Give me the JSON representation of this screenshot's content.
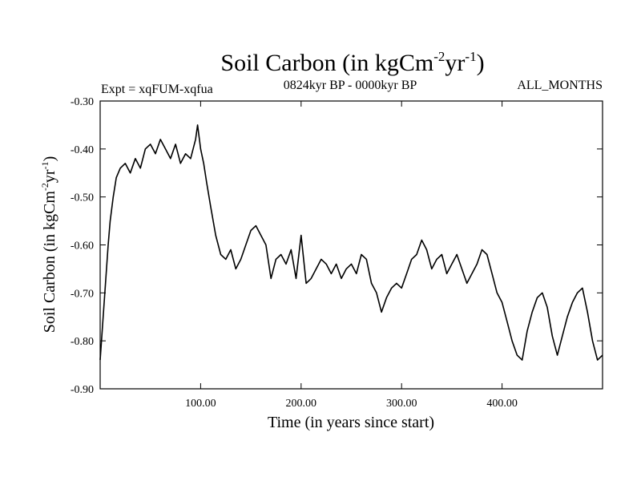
{
  "chart_data": {
    "type": "line",
    "title": {
      "main": "Soil Carbon (in kgCm",
      "sup1": "-2",
      "mid": "yr",
      "sup2": "-1",
      "end": ")"
    },
    "subtitle_left": "Expt = xqFUM-xqfua",
    "subtitle_center": "0824kyr BP - 0000kyr BP",
    "subtitle_right": "ALL_MONTHS",
    "xlabel": "Time (in years since start)",
    "ylabel": {
      "main": "Soil Carbon (in kgCm",
      "sup1": "-2",
      "mid": "yr",
      "sup2": "-1",
      "end": ")"
    },
    "xlim": [
      0,
      500
    ],
    "ylim": [
      -0.9,
      -0.3
    ],
    "x_ticks": [
      100,
      200,
      300,
      400
    ],
    "x_tick_labels": [
      "100.00",
      "200.00",
      "300.00",
      "400.00"
    ],
    "y_ticks": [
      -0.9,
      -0.8,
      -0.7,
      -0.6,
      -0.5,
      -0.4,
      -0.3
    ],
    "y_tick_labels": [
      "-0.90",
      "-0.80",
      "-0.70",
      "-0.60",
      "-0.50",
      "-0.40",
      "-0.30"
    ],
    "series": [
      {
        "name": "Soil Carbon",
        "x": [
          0,
          2,
          4,
          6,
          8,
          10,
          13,
          16,
          20,
          25,
          30,
          35,
          40,
          45,
          50,
          55,
          60,
          65,
          70,
          75,
          80,
          85,
          90,
          95,
          97,
          100,
          103,
          106,
          110,
          115,
          120,
          125,
          130,
          135,
          140,
          145,
          150,
          155,
          160,
          165,
          170,
          175,
          180,
          185,
          190,
          195,
          200,
          205,
          210,
          215,
          220,
          225,
          230,
          235,
          240,
          245,
          250,
          255,
          260,
          265,
          270,
          275,
          280,
          285,
          290,
          295,
          300,
          305,
          310,
          315,
          320,
          325,
          330,
          335,
          340,
          345,
          350,
          355,
          360,
          365,
          370,
          375,
          380,
          385,
          390,
          395,
          400,
          405,
          410,
          415,
          420,
          425,
          430,
          435,
          440,
          445,
          450,
          455,
          460,
          465,
          470,
          475,
          480,
          485,
          490,
          495,
          500
        ],
        "values": [
          -0.84,
          -0.78,
          -0.72,
          -0.66,
          -0.6,
          -0.55,
          -0.5,
          -0.46,
          -0.44,
          -0.43,
          -0.45,
          -0.42,
          -0.44,
          -0.4,
          -0.39,
          -0.41,
          -0.38,
          -0.4,
          -0.42,
          -0.39,
          -0.43,
          -0.41,
          -0.42,
          -0.38,
          -0.35,
          -0.4,
          -0.43,
          -0.47,
          -0.52,
          -0.58,
          -0.62,
          -0.63,
          -0.61,
          -0.65,
          -0.63,
          -0.6,
          -0.57,
          -0.56,
          -0.58,
          -0.6,
          -0.67,
          -0.63,
          -0.62,
          -0.64,
          -0.61,
          -0.67,
          -0.58,
          -0.68,
          -0.67,
          -0.65,
          -0.63,
          -0.64,
          -0.66,
          -0.64,
          -0.67,
          -0.65,
          -0.64,
          -0.66,
          -0.62,
          -0.63,
          -0.68,
          -0.7,
          -0.74,
          -0.71,
          -0.69,
          -0.68,
          -0.69,
          -0.66,
          -0.63,
          -0.62,
          -0.59,
          -0.61,
          -0.65,
          -0.63,
          -0.62,
          -0.66,
          -0.64,
          -0.62,
          -0.65,
          -0.68,
          -0.66,
          -0.64,
          -0.61,
          -0.62,
          -0.66,
          -0.7,
          -0.72,
          -0.76,
          -0.8,
          -0.83,
          -0.84,
          -0.78,
          -0.74,
          -0.71,
          -0.7,
          -0.73,
          -0.79,
          -0.83,
          -0.79,
          -0.75,
          -0.72,
          -0.7,
          -0.69,
          -0.74,
          -0.8,
          -0.84,
          -0.83
        ]
      }
    ]
  }
}
